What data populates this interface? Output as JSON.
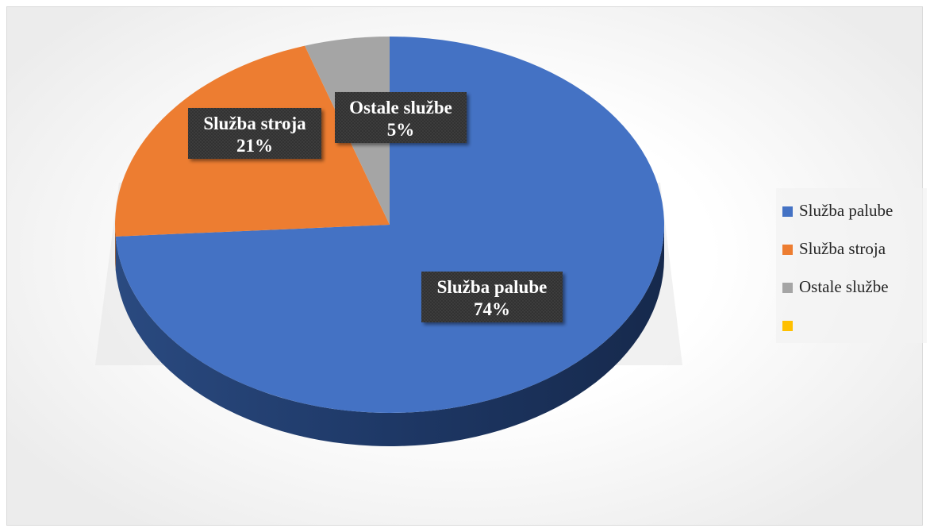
{
  "chart_data": {
    "type": "pie",
    "style": "3d",
    "categories": [
      "Služba palube",
      "Služba stroja",
      "Ostale službe",
      ""
    ],
    "values": [
      74,
      21,
      5,
      0
    ],
    "labels": [
      {
        "name": "Služba palube",
        "pct": "74%"
      },
      {
        "name": "Služba stroja",
        "pct": "21%"
      },
      {
        "name": "Ostale službe",
        "pct": "5%"
      }
    ],
    "colors": [
      "#4472C4",
      "#ED7D31",
      "#A5A5A5",
      "#FFC000"
    ],
    "side_colors": [
      "#23406f",
      "#9a4e18",
      "#6e6e6e",
      "#a37a00"
    ],
    "legend_position": "right",
    "title": ""
  }
}
